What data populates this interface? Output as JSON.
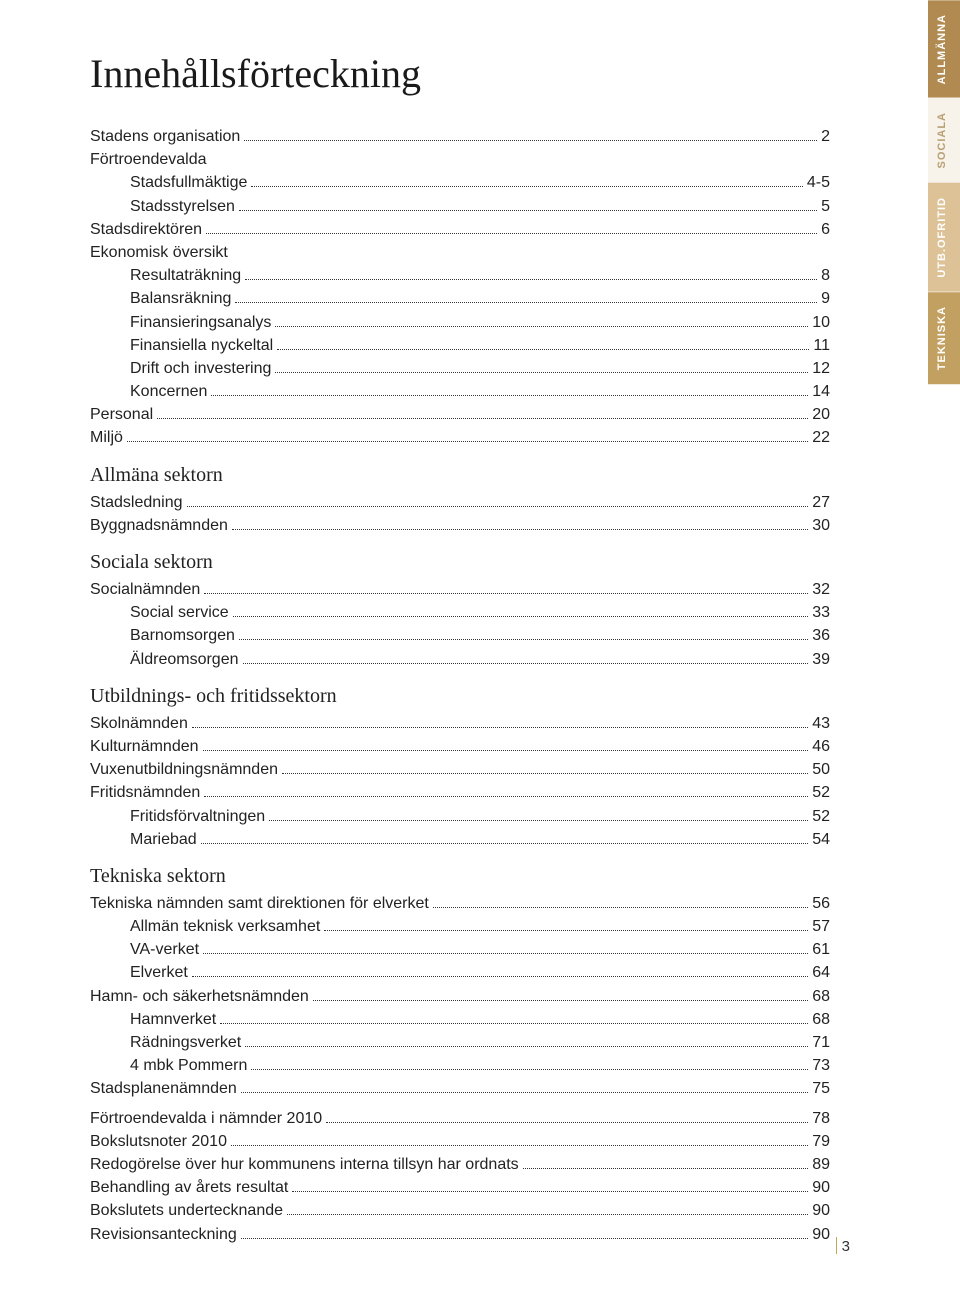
{
  "title": "Innehållsförteckning",
  "side_tabs": [
    {
      "label": "ALLMÄNNA",
      "cls": "tab-allmanna"
    },
    {
      "label": "SOCIALA",
      "cls": "tab-sociala"
    },
    {
      "label": "UTB.OFRITID",
      "cls": "tab-utb"
    },
    {
      "label": "TEKNISKA",
      "cls": "tab-tekniska"
    }
  ],
  "groups": [
    {
      "heading": null,
      "entries": [
        {
          "label": "Stadens organisation",
          "page": "2",
          "indent": 0
        },
        {
          "label": "Förtroendevalda",
          "page": "",
          "indent": 0,
          "nolabelpage": true
        },
        {
          "label": "Stadsfullmäktige",
          "page": "4-5",
          "indent": 1
        },
        {
          "label": "Stadsstyrelsen",
          "page": "5",
          "indent": 1
        },
        {
          "label": "Stadsdirektören",
          "page": "6",
          "indent": 0
        },
        {
          "label": "Ekonomisk översikt",
          "page": "",
          "indent": 0,
          "nolabelpage": true
        },
        {
          "label": "Resultaträkning",
          "page": "8",
          "indent": 1
        },
        {
          "label": "Balansräkning",
          "page": "9",
          "indent": 1
        },
        {
          "label": "Finansieringsanalys",
          "page": "10",
          "indent": 1
        },
        {
          "label": "Finansiella nyckeltal",
          "page": "11",
          "indent": 1
        },
        {
          "label": "Drift och investering",
          "page": "12",
          "indent": 1
        },
        {
          "label": "Koncernen",
          "page": "14",
          "indent": 1
        },
        {
          "label": "Personal",
          "page": "20",
          "indent": 0
        },
        {
          "label": "Miljö",
          "page": "22",
          "indent": 0
        }
      ]
    },
    {
      "heading": "Allmäna sektorn",
      "entries": [
        {
          "label": "Stadsledning",
          "page": "27",
          "indent": 0
        },
        {
          "label": "Byggnadsnämnden",
          "page": "30",
          "indent": 0
        }
      ]
    },
    {
      "heading": "Sociala sektorn",
      "entries": [
        {
          "label": "Socialnämnden",
          "page": "32",
          "indent": 0
        },
        {
          "label": "Social service",
          "page": "33",
          "indent": 1
        },
        {
          "label": "Barnomsorgen",
          "page": "36",
          "indent": 1
        },
        {
          "label": "Äldreomsorgen",
          "page": "39",
          "indent": 1
        }
      ]
    },
    {
      "heading": "Utbildnings- och fritidssektorn",
      "entries": [
        {
          "label": "Skolnämnden",
          "page": "43",
          "indent": 0
        },
        {
          "label": "Kulturnämnden",
          "page": "46",
          "indent": 0
        },
        {
          "label": "Vuxenutbildningsnämnden",
          "page": "50",
          "indent": 0
        },
        {
          "label": "Fritidsnämnden",
          "page": "52",
          "indent": 0
        },
        {
          "label": "Fritidsförvaltningen",
          "page": "52",
          "indent": 1
        },
        {
          "label": "Mariebad",
          "page": "54",
          "indent": 1
        }
      ]
    },
    {
      "heading": "Tekniska sektorn",
      "entries": [
        {
          "label": "Tekniska nämnden samt direktionen för elverket",
          "page": "56",
          "indent": 0
        },
        {
          "label": "Allmän teknisk verksamhet",
          "page": "57",
          "indent": 1
        },
        {
          "label": "VA-verket",
          "page": "61",
          "indent": 1
        },
        {
          "label": "Elverket",
          "page": "64",
          "indent": 1
        },
        {
          "label": "Hamn- och säkerhetsnämnden",
          "page": "68",
          "indent": 0
        },
        {
          "label": "Hamnverket",
          "page": "68",
          "indent": 1
        },
        {
          "label": "Rädningsverket",
          "page": "71",
          "indent": 1
        },
        {
          "label": "4 mbk Pommern",
          "page": "73",
          "indent": 1
        },
        {
          "label": "Stadsplanenämnden",
          "page": "75",
          "indent": 0
        }
      ]
    },
    {
      "heading": null,
      "gap_before": true,
      "entries": [
        {
          "label": "Förtroendevalda i nämnder 2010",
          "page": "78",
          "indent": 0
        },
        {
          "label": "Bokslutsnoter 2010",
          "page": "79",
          "indent": 0
        },
        {
          "label": "Redogörelse över hur kommunens interna tillsyn har ordnats",
          "page": "89",
          "indent": 0
        },
        {
          "label": "Behandling av årets resultat",
          "page": "90",
          "indent": 0
        },
        {
          "label": "Bokslutets undertecknande",
          "page": "90",
          "indent": 0
        },
        {
          "label": "Revisionsanteckning",
          "page": "90",
          "indent": 0
        }
      ]
    }
  ],
  "page_number": "3"
}
